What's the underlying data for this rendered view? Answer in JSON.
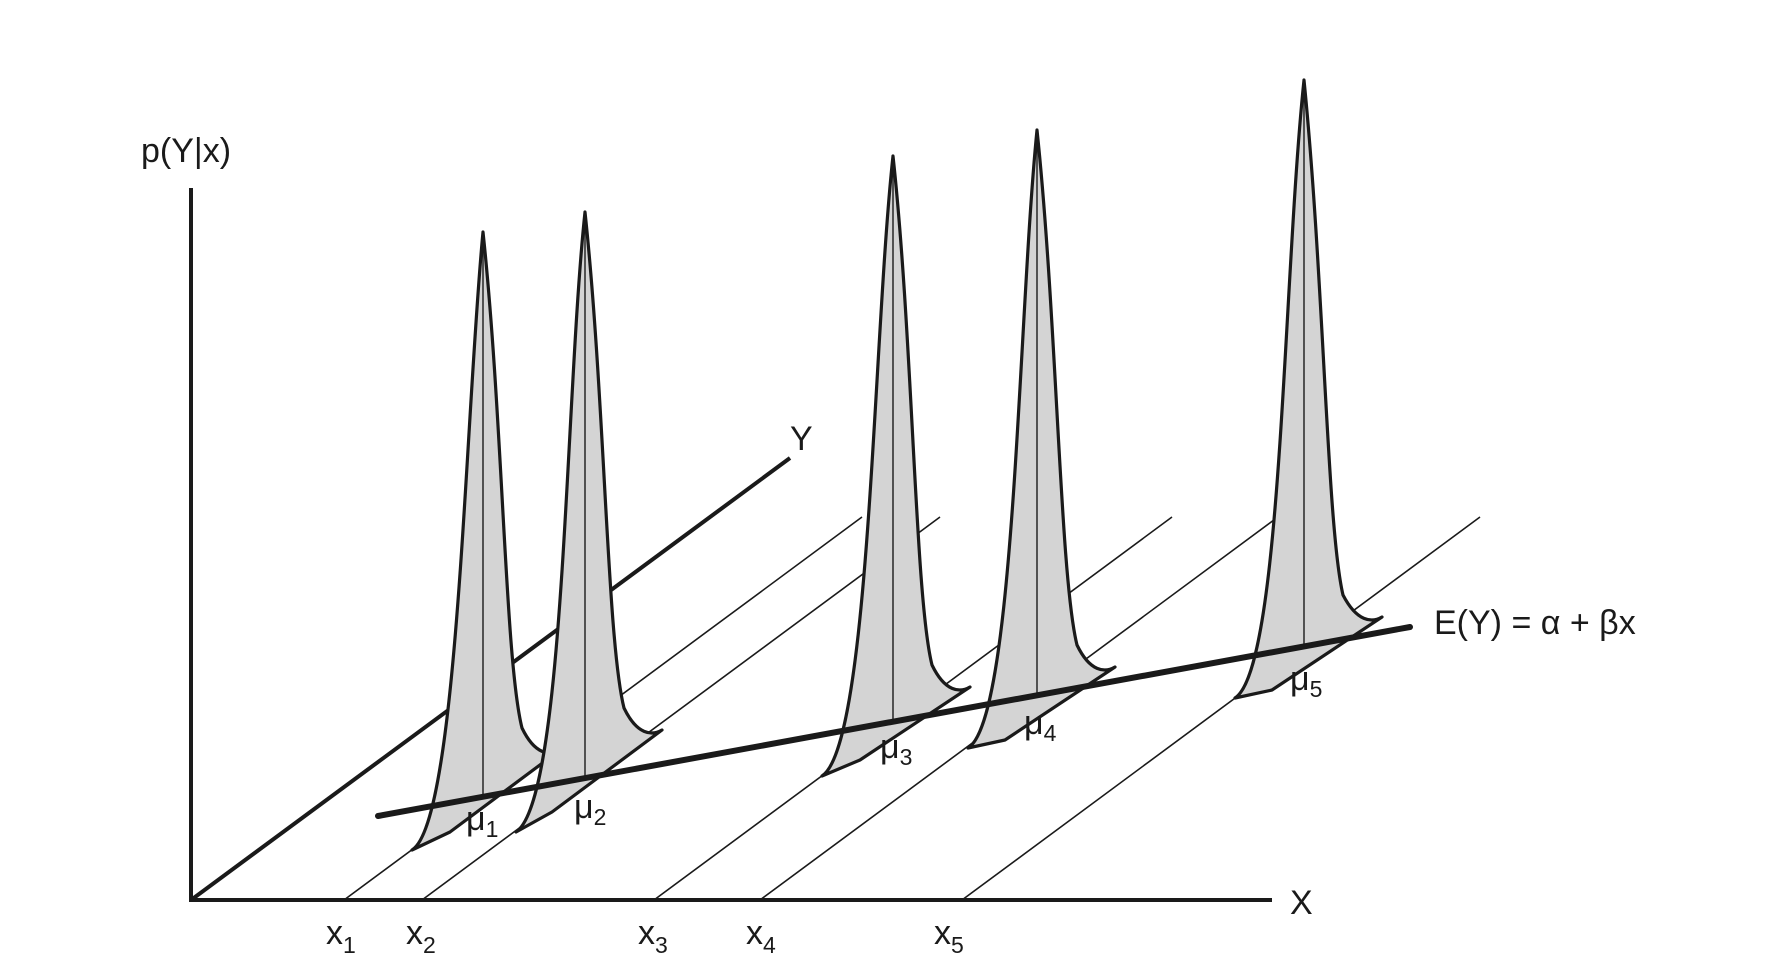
{
  "diagram": {
    "y_axis_label": "p(Y|x)",
    "x_axis_label": "X",
    "depth_axis_label": "Y",
    "regression_label": "E(Y) = α + βx",
    "x_points": [
      {
        "base": "x",
        "sub": "1"
      },
      {
        "base": "x",
        "sub": "2"
      },
      {
        "base": "x",
        "sub": "3"
      },
      {
        "base": "x",
        "sub": "4"
      },
      {
        "base": "x",
        "sub": "5"
      }
    ],
    "means": [
      {
        "base": "μ",
        "sub": "1"
      },
      {
        "base": "μ",
        "sub": "2"
      },
      {
        "base": "μ",
        "sub": "3"
      },
      {
        "base": "μ",
        "sub": "4"
      },
      {
        "base": "μ",
        "sub": "5"
      }
    ],
    "curve_fill": "#d4d4d4",
    "line_color": "#1a1a1a"
  }
}
